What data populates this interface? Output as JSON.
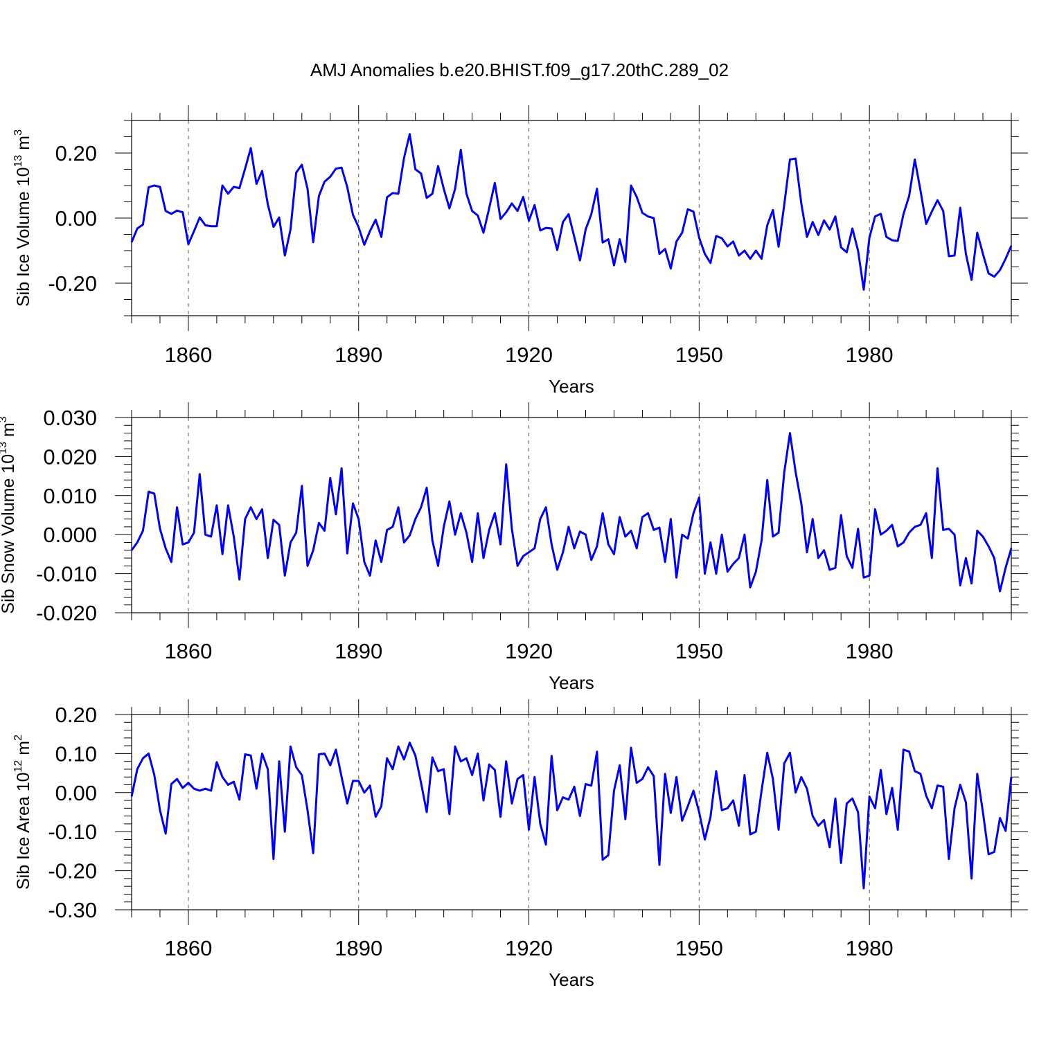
{
  "title": "AMJ Anomalies b.e20.BHIST.f09_g17.20thC.289_02",
  "colors": {
    "series": "#0000ff",
    "axis": "#000000",
    "grid": "#555555"
  },
  "chart_data": [
    {
      "type": "line",
      "name": "sib-ice-volume",
      "ylabel": {
        "main": "Sib Ice Volume 10",
        "exp": "13",
        "unit": " m",
        "unit_exp": "3"
      },
      "xlabel": "Years",
      "xlim": [
        1850,
        2005
      ],
      "ylim": [
        -0.3,
        0.3
      ],
      "y_major_ticks": [
        -0.2,
        0.0,
        0.2
      ],
      "y_tick_labels": [
        "-0.20",
        "0.00",
        "0.20"
      ],
      "y_minor_step": 0.05,
      "x_major_ticks": [
        1860,
        1890,
        1920,
        1950,
        1980
      ],
      "x_tick_labels": [
        "1860",
        "1890",
        "1920",
        "1950",
        "1980"
      ],
      "x_start": 1850,
      "values": [
        -0.074,
        -0.032,
        -0.02,
        0.095,
        0.1,
        0.096,
        0.022,
        0.013,
        0.023,
        0.018,
        -0.08,
        -0.04,
        0.002,
        -0.022,
        -0.025,
        -0.025,
        0.1,
        0.075,
        0.096,
        0.092,
        0.152,
        0.215,
        0.105,
        0.145,
        0.042,
        -0.027,
        0.002,
        -0.115,
        -0.035,
        0.14,
        0.164,
        0.09,
        -0.074,
        0.068,
        0.112,
        0.127,
        0.152,
        0.155,
        0.095,
        0.01,
        -0.028,
        -0.082,
        -0.04,
        -0.005,
        -0.058,
        0.064,
        0.077,
        0.075,
        0.185,
        0.258,
        0.15,
        0.137,
        0.062,
        0.075,
        0.16,
        0.09,
        0.03,
        0.09,
        0.21,
        0.075,
        0.022,
        0.008,
        -0.045,
        0.03,
        0.108,
        -0.003,
        0.018,
        0.045,
        0.022,
        0.065,
        -0.008,
        0.04,
        -0.038,
        -0.03,
        -0.032,
        -0.098,
        -0.012,
        0.012,
        -0.058,
        -0.13,
        -0.035,
        0.012,
        0.09,
        -0.075,
        -0.065,
        -0.145,
        -0.065,
        -0.135,
        0.1,
        0.065,
        0.016,
        0.005,
        0.0,
        -0.11,
        -0.095,
        -0.155,
        -0.072,
        -0.045,
        0.027,
        0.02,
        -0.06,
        -0.11,
        -0.138,
        -0.055,
        -0.062,
        -0.087,
        -0.072,
        -0.115,
        -0.1,
        -0.125,
        -0.1,
        -0.125,
        -0.022,
        0.025,
        -0.088,
        0.042,
        0.18,
        0.183,
        0.045,
        -0.058,
        -0.012,
        -0.052,
        -0.007,
        -0.035,
        0.005,
        -0.09,
        -0.105,
        -0.032,
        -0.1,
        -0.22,
        -0.06,
        0.005,
        0.013,
        -0.058,
        -0.068,
        -0.07,
        0.012,
        0.068,
        0.18,
        0.085,
        -0.018,
        0.02,
        0.055,
        0.022,
        -0.117,
        -0.115,
        0.032,
        -0.11,
        -0.19,
        -0.045,
        -0.11,
        -0.17,
        -0.18,
        -0.16,
        -0.125,
        -0.085
      ]
    },
    {
      "type": "line",
      "name": "sib-snow-volume",
      "ylabel": {
        "main": "Sib Snow Volume 10",
        "exp": "13",
        "unit": " m",
        "unit_exp": "3"
      },
      "xlabel": "Years",
      "xlim": [
        1850,
        2005
      ],
      "ylim": [
        -0.02,
        0.03
      ],
      "y_major_ticks": [
        -0.02,
        -0.01,
        0.0,
        0.01,
        0.02,
        0.03
      ],
      "y_tick_labels": [
        "-0.020",
        "-0.010",
        "0.000",
        "0.010",
        "0.020",
        "0.030"
      ],
      "y_minor_step": 0.002,
      "x_major_ticks": [
        1860,
        1890,
        1920,
        1950,
        1980
      ],
      "x_tick_labels": [
        "1860",
        "1890",
        "1920",
        "1950",
        "1980"
      ],
      "x_start": 1850,
      "values": [
        -0.004,
        -0.002,
        0.001,
        0.011,
        0.0105,
        0.0015,
        -0.0035,
        -0.007,
        0.007,
        -0.0025,
        -0.002,
        0.0005,
        0.0155,
        0.0,
        -0.0005,
        0.0075,
        -0.005,
        0.0075,
        -0.0005,
        -0.0115,
        0.004,
        0.007,
        0.004,
        0.0065,
        -0.006,
        0.0038,
        0.0025,
        -0.0105,
        -0.002,
        0.0005,
        0.0125,
        -0.008,
        -0.004,
        0.003,
        0.001,
        0.0145,
        0.0052,
        0.017,
        -0.0048,
        0.008,
        0.004,
        -0.007,
        -0.0105,
        -0.0015,
        -0.007,
        0.0012,
        0.002,
        0.007,
        -0.002,
        -0.0002,
        0.004,
        0.007,
        0.012,
        -0.0015,
        -0.008,
        0.002,
        0.0085,
        0.0,
        0.0055,
        0.0005,
        -0.007,
        0.0055,
        -0.006,
        0.0012,
        0.0055,
        -0.0025,
        0.018,
        0.0015,
        -0.008,
        -0.0055,
        -0.0045,
        -0.0035,
        0.004,
        0.007,
        -0.0025,
        -0.009,
        -0.0045,
        0.002,
        -0.0035,
        0.0008,
        0.0,
        -0.0065,
        -0.003,
        0.0055,
        -0.0025,
        -0.005,
        0.0045,
        -0.0005,
        0.001,
        -0.0035,
        0.0045,
        0.0055,
        0.0012,
        0.0018,
        -0.007,
        0.004,
        -0.011,
        0.0,
        -0.001,
        0.0055,
        0.0095,
        -0.01,
        -0.002,
        -0.01,
        0.0,
        -0.0095,
        -0.0075,
        -0.006,
        0.0,
        -0.0135,
        -0.0095,
        -0.0015,
        0.014,
        -0.0005,
        0.0005,
        0.016,
        0.026,
        0.016,
        0.008,
        -0.0045,
        0.004,
        -0.006,
        -0.004,
        -0.009,
        -0.0085,
        0.005,
        -0.0055,
        -0.0085,
        0.0015,
        -0.011,
        -0.0105,
        0.0065,
        0.0,
        0.001,
        0.0025,
        -0.003,
        -0.002,
        0.0005,
        0.002,
        0.0025,
        0.0055,
        -0.006,
        0.017,
        0.0012,
        0.0015,
        0.0,
        -0.013,
        -0.006,
        -0.0125,
        0.001,
        -0.0005,
        -0.003,
        -0.006,
        -0.0145,
        -0.0085,
        -0.0035
      ]
    },
    {
      "type": "line",
      "name": "sib-ice-area",
      "ylabel": {
        "main": "Sib Ice Area 10",
        "exp": "12",
        "unit": " m",
        "unit_exp": "2"
      },
      "xlabel": "Years",
      "xlim": [
        1850,
        2005
      ],
      "ylim": [
        -0.3,
        0.2
      ],
      "y_major_ticks": [
        -0.3,
        -0.2,
        -0.1,
        0.0,
        0.1,
        0.2
      ],
      "y_tick_labels": [
        "-0.30",
        "-0.20",
        "-0.10",
        "0.00",
        "0.10",
        "0.20"
      ],
      "y_minor_step": 0.02,
      "x_major_ticks": [
        1860,
        1890,
        1920,
        1950,
        1980
      ],
      "x_tick_labels": [
        "1860",
        "1890",
        "1920",
        "1950",
        "1980"
      ],
      "x_start": 1850,
      "values": [
        -0.01,
        0.06,
        0.088,
        0.1,
        0.045,
        -0.045,
        -0.105,
        0.022,
        0.035,
        0.012,
        0.025,
        0.01,
        0.005,
        0.01,
        0.005,
        0.078,
        0.04,
        0.02,
        0.028,
        -0.018,
        0.098,
        0.095,
        0.01,
        0.1,
        0.06,
        -0.17,
        0.08,
        -0.1,
        0.118,
        0.065,
        0.045,
        -0.045,
        -0.155,
        0.098,
        0.1,
        0.07,
        0.11,
        0.04,
        -0.028,
        0.03,
        0.03,
        0.0,
        0.018,
        -0.062,
        -0.035,
        0.088,
        0.06,
        0.118,
        0.085,
        0.128,
        0.095,
        0.025,
        -0.05,
        0.09,
        0.055,
        0.06,
        -0.055,
        0.118,
        0.08,
        0.088,
        0.045,
        0.1,
        -0.02,
        0.072,
        0.058,
        -0.062,
        0.08,
        -0.028,
        0.035,
        0.045,
        -0.095,
        0.04,
        -0.08,
        -0.133,
        0.094,
        -0.045,
        -0.012,
        -0.018,
        0.015,
        -0.06,
        0.022,
        0.018,
        0.105,
        -0.172,
        -0.16,
        0.005,
        0.07,
        -0.068,
        0.115,
        0.025,
        0.035,
        0.065,
        0.042,
        -0.185,
        0.048,
        -0.052,
        0.04,
        -0.072,
        -0.035,
        0.005,
        -0.05,
        -0.12,
        -0.062,
        0.055,
        -0.045,
        -0.04,
        -0.02,
        -0.085,
        0.045,
        -0.107,
        -0.1,
        0.005,
        0.102,
        0.035,
        -0.095,
        0.075,
        0.102,
        0.0,
        0.04,
        0.01,
        -0.06,
        -0.085,
        -0.07,
        -0.14,
        -0.015,
        -0.18,
        -0.028,
        -0.015,
        -0.05,
        -0.245,
        -0.01,
        -0.04,
        0.058,
        -0.055,
        0.012,
        -0.095,
        0.11,
        0.105,
        0.055,
        0.048,
        -0.008,
        -0.04,
        0.018,
        0.015,
        -0.17,
        -0.04,
        0.02,
        -0.025,
        -0.22,
        0.048,
        -0.05,
        -0.158,
        -0.152,
        -0.065,
        -0.098,
        0.04
      ]
    }
  ]
}
